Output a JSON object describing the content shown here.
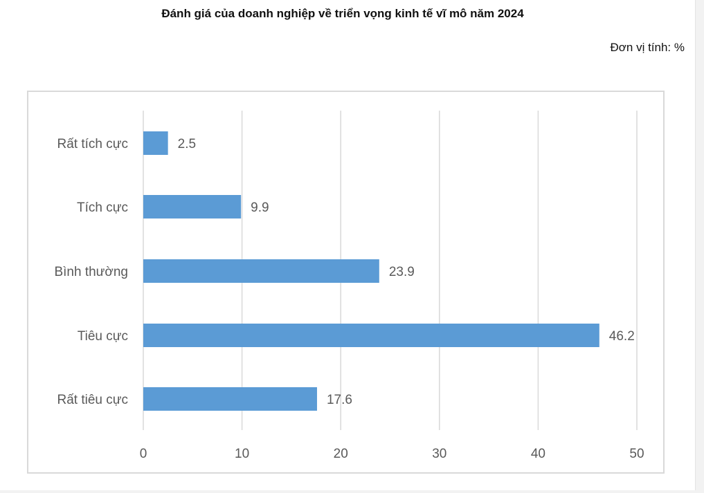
{
  "header": {
    "title": "Đánh giá của doanh nghiệp về triển vọng kinh tế vĩ mô năm 2024",
    "unit": "Đơn vị tính: %"
  },
  "chart_data": {
    "type": "bar",
    "orientation": "horizontal",
    "categories": [
      "Rất tích cực",
      "Tích cực",
      "Bình thường",
      "Tiêu cực",
      "Rất tiêu cực"
    ],
    "values": [
      2.5,
      9.9,
      23.9,
      46.2,
      17.6
    ],
    "title": "Đánh giá của doanh nghiệp về triển vọng kinh tế vĩ mô năm 2024",
    "xlabel": "",
    "ylabel": "",
    "xlim": [
      0,
      50
    ],
    "ticks": [
      0,
      10,
      20,
      30,
      40,
      50
    ],
    "grid": true,
    "legend": "none",
    "bar_color": "#5b9bd5",
    "grid_color": "#d9d9d9"
  }
}
